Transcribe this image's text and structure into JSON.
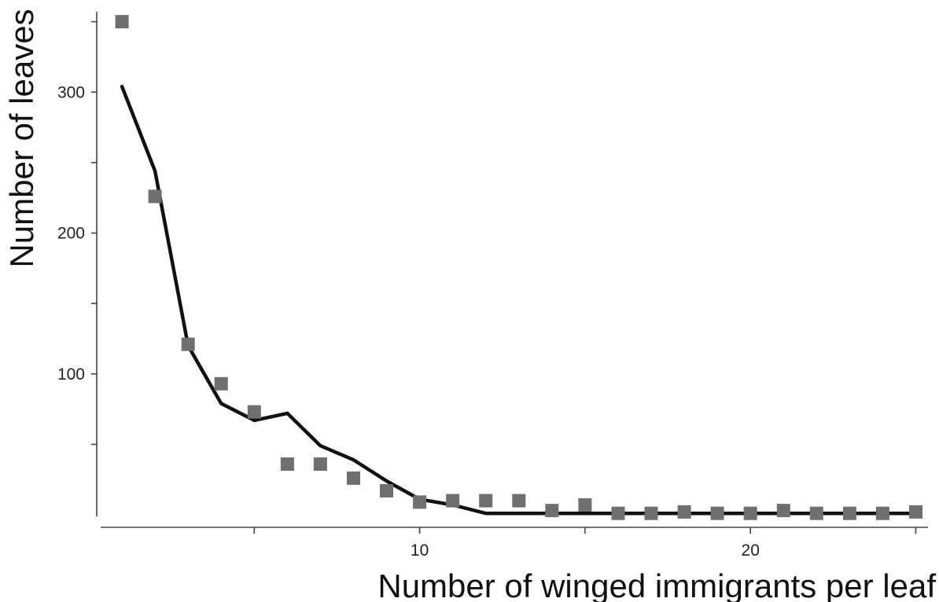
{
  "chart_data": {
    "type": "scatter",
    "title": "",
    "xlabel": "Number of winged immigrants per leaf",
    "ylabel": "Number of leaves",
    "xlim": [
      0,
      25
    ],
    "ylim": [
      0,
      350
    ],
    "x_ticks_major": [
      5,
      10,
      15,
      20,
      25
    ],
    "x_tick_labels": [
      {
        "value": 10,
        "label": "10"
      },
      {
        "value": 20,
        "label": "20"
      }
    ],
    "y_ticks_major": [
      50,
      100,
      150,
      200,
      250,
      300,
      350
    ],
    "y_tick_labels": [
      {
        "value": 100,
        "label": "100"
      },
      {
        "value": 200,
        "label": "200"
      },
      {
        "value": 300,
        "label": "300"
      }
    ],
    "grid": false,
    "series": [
      {
        "kind": "scatter",
        "marker": "square",
        "color": "#6f6f6f",
        "x": [
          1,
          2,
          3,
          4,
          5,
          6,
          7,
          8,
          9,
          10,
          11,
          12,
          13,
          14,
          15,
          16,
          17,
          18,
          19,
          20,
          21,
          22,
          23,
          24,
          25
        ],
        "y": [
          350,
          226,
          121,
          93,
          73,
          36,
          36,
          26,
          17,
          9,
          10,
          10,
          10,
          3,
          7,
          1,
          1,
          2,
          1,
          1,
          3,
          1,
          1,
          1,
          2
        ]
      },
      {
        "kind": "line",
        "color": "#111111",
        "x": [
          1,
          2,
          3,
          4,
          5,
          6,
          7,
          8,
          9,
          10,
          11,
          12,
          13,
          14,
          15,
          16,
          17,
          18,
          19,
          20,
          21,
          22,
          23,
          24,
          25
        ],
        "y": [
          304,
          244,
          120,
          79,
          67,
          72,
          49,
          39,
          24,
          11,
          7,
          1,
          1,
          1,
          1,
          1,
          1,
          1,
          1,
          1,
          1,
          1,
          1,
          1,
          1
        ]
      }
    ]
  }
}
